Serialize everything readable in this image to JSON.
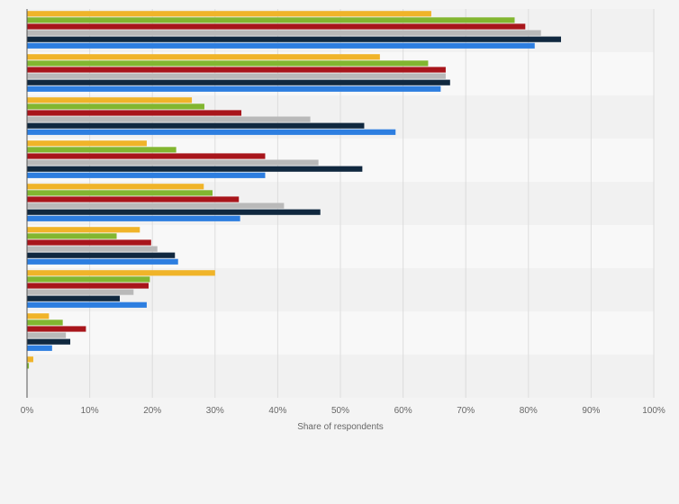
{
  "chart_data": {
    "type": "bar",
    "orientation": "horizontal",
    "xlabel": "Share of respondents",
    "xlim": [
      0,
      1
    ],
    "x_ticks": [
      "0%",
      "10%",
      "20%",
      "30%",
      "40%",
      "50%",
      "60%",
      "70%",
      "80%",
      "90%",
      "100%"
    ],
    "grid": true,
    "categories": [
      "",
      "",
      "",
      "",
      "",
      "",
      "",
      "",
      ""
    ],
    "series": [
      {
        "color": "#f0b429",
        "values": [
          0.645,
          0.563,
          0.263,
          0.191,
          0.282,
          0.18,
          0.3,
          0.035,
          0.01
        ]
      },
      {
        "color": "#82b630",
        "values": [
          0.778,
          0.64,
          0.283,
          0.238,
          0.296,
          0.143,
          0.196,
          0.057,
          0.003
        ]
      },
      {
        "color": "#a8151b",
        "values": [
          0.795,
          0.668,
          0.342,
          0.38,
          0.338,
          0.198,
          0.194,
          0.094,
          0
        ]
      },
      {
        "color": "#b9b9b9",
        "values": [
          0.82,
          0.668,
          0.452,
          0.465,
          0.41,
          0.208,
          0.17,
          0.062,
          0
        ]
      },
      {
        "color": "#10283f",
        "values": [
          0.852,
          0.675,
          0.538,
          0.535,
          0.468,
          0.236,
          0.148,
          0.069,
          0
        ]
      },
      {
        "color": "#2d7ee0",
        "values": [
          0.81,
          0.66,
          0.588,
          0.38,
          0.34,
          0.241,
          0.191,
          0.04,
          0
        ]
      }
    ]
  }
}
